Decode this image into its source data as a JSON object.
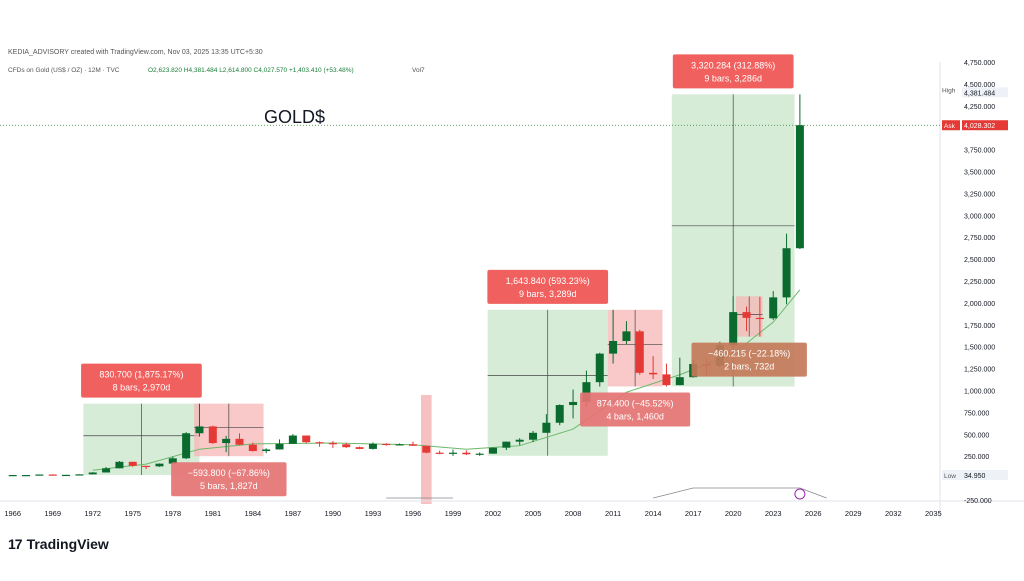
{
  "header": {
    "publisher": "KEDIA_ADVISORY created with TradingView.com, Nov 03, 2025 13:35 UTC+5:30",
    "symbol_line": "CFDs on Gold (US$ / OZ) · 12M · TVC",
    "ohlc": "O2,623.820  H4,381.484  L2,614.800  C4,027.570  +1,403.410 (+53.48%)",
    "vol": "Vol7"
  },
  "title": "GOLD$",
  "footer": {
    "brand": "TradingView",
    "logo_glyph": "17"
  },
  "colors": {
    "up": "#0b6b2e",
    "down": "#e53935",
    "range_up": "#c8e6c9",
    "range_down": "#f7b6b6",
    "label_up": "#ef5350",
    "label_brown": "#c47a5a",
    "label_pink": "#e57373"
  },
  "chart_data": {
    "type": "candlestick",
    "x_ticks": [
      "1966",
      "1969",
      "1972",
      "1975",
      "1978",
      "1981",
      "1984",
      "1987",
      "1990",
      "1993",
      "1996",
      "1999",
      "2002",
      "2005",
      "2008",
      "2011",
      "2014",
      "2017",
      "2020",
      "2023",
      "2026",
      "2029",
      "2032",
      "2035"
    ],
    "y_ticks": [
      "4,750.000",
      "4,500.000",
      "4,250.000",
      "3,750.000",
      "3,500.000",
      "3,250.000",
      "3,000.000",
      "2,750.000",
      "2,500.000",
      "2,250.000",
      "2,000.000",
      "1,750.000",
      "1,500.000",
      "1,250.000",
      "1,000.000",
      "750.000",
      "500.000",
      "250.000",
      "-250.000"
    ],
    "ylim": [
      -250,
      4750
    ],
    "xlim": [
      1965.5,
      2035.5
    ],
    "high_label": "High",
    "high_value": "4,381.484",
    "ask_label": "Ask",
    "ask_value": "4,028.302",
    "low_label": "Low",
    "low_value": "34.950",
    "candles": [
      {
        "year": 1966,
        "o": 35,
        "h": 35.5,
        "l": 34.9,
        "c": 35
      },
      {
        "year": 1967,
        "o": 35,
        "h": 35.5,
        "l": 34.9,
        "c": 35
      },
      {
        "year": 1968,
        "o": 35,
        "h": 42,
        "l": 34.9,
        "c": 41
      },
      {
        "year": 1969,
        "o": 41,
        "h": 44,
        "l": 35,
        "c": 35
      },
      {
        "year": 1970,
        "o": 35,
        "h": 39,
        "l": 34.9,
        "c": 37
      },
      {
        "year": 1971,
        "o": 37,
        "h": 44,
        "l": 37,
        "c": 43
      },
      {
        "year": 1972,
        "o": 43,
        "h": 68,
        "l": 43,
        "c": 64
      },
      {
        "year": 1973,
        "o": 64,
        "h": 127,
        "l": 64,
        "c": 112
      },
      {
        "year": 1974,
        "o": 112,
        "h": 195,
        "l": 112,
        "c": 186
      },
      {
        "year": 1975,
        "o": 186,
        "h": 186,
        "l": 128,
        "c": 140
      },
      {
        "year": 1976,
        "o": 140,
        "h": 141,
        "l": 103,
        "c": 134
      },
      {
        "year": 1977,
        "o": 134,
        "h": 168,
        "l": 128,
        "c": 165
      },
      {
        "year": 1978,
        "o": 165,
        "h": 244,
        "l": 165,
        "c": 226
      },
      {
        "year": 1979,
        "o": 226,
        "h": 524,
        "l": 216,
        "c": 512
      },
      {
        "year": 1980,
        "o": 512,
        "h": 850,
        "l": 474,
        "c": 590
      },
      {
        "year": 1981,
        "o": 590,
        "h": 599,
        "l": 391,
        "c": 400
      },
      {
        "year": 1982,
        "o": 400,
        "h": 482,
        "l": 296,
        "c": 448
      },
      {
        "year": 1983,
        "o": 448,
        "h": 510,
        "l": 374,
        "c": 381
      },
      {
        "year": 1984,
        "o": 381,
        "h": 405,
        "l": 303,
        "c": 309
      },
      {
        "year": 1985,
        "o": 309,
        "h": 340,
        "l": 285,
        "c": 327
      },
      {
        "year": 1986,
        "o": 327,
        "h": 442,
        "l": 326,
        "c": 391
      },
      {
        "year": 1987,
        "o": 391,
        "h": 502,
        "l": 390,
        "c": 486
      },
      {
        "year": 1988,
        "o": 486,
        "h": 486,
        "l": 395,
        "c": 410
      },
      {
        "year": 1989,
        "o": 410,
        "h": 418,
        "l": 358,
        "c": 401
      },
      {
        "year": 1990,
        "o": 401,
        "h": 424,
        "l": 345,
        "c": 386
      },
      {
        "year": 1991,
        "o": 386,
        "h": 403,
        "l": 344,
        "c": 353
      },
      {
        "year": 1992,
        "o": 353,
        "h": 360,
        "l": 330,
        "c": 333
      },
      {
        "year": 1993,
        "o": 333,
        "h": 407,
        "l": 326,
        "c": 391
      },
      {
        "year": 1994,
        "o": 391,
        "h": 398,
        "l": 370,
        "c": 383
      },
      {
        "year": 1995,
        "o": 383,
        "h": 396,
        "l": 372,
        "c": 386
      },
      {
        "year": 1996,
        "o": 386,
        "h": 417,
        "l": 367,
        "c": 369
      },
      {
        "year": 1997,
        "o": 369,
        "h": 369,
        "l": 283,
        "c": 290
      },
      {
        "year": 1998,
        "o": 290,
        "h": 313,
        "l": 273,
        "c": 288
      },
      {
        "year": 1999,
        "o": 288,
        "h": 326,
        "l": 253,
        "c": 290
      },
      {
        "year": 2000,
        "o": 290,
        "h": 316,
        "l": 263,
        "c": 272
      },
      {
        "year": 2001,
        "o": 272,
        "h": 293,
        "l": 255,
        "c": 279
      },
      {
        "year": 2002,
        "o": 279,
        "h": 349,
        "l": 277,
        "c": 347
      },
      {
        "year": 2003,
        "o": 347,
        "h": 417,
        "l": 320,
        "c": 416
      },
      {
        "year": 2004,
        "o": 416,
        "h": 456,
        "l": 375,
        "c": 438
      },
      {
        "year": 2005,
        "o": 438,
        "h": 538,
        "l": 411,
        "c": 517
      },
      {
        "year": 2006,
        "o": 517,
        "h": 730,
        "l": 520,
        "c": 632
      },
      {
        "year": 2007,
        "o": 632,
        "h": 842,
        "l": 603,
        "c": 834
      },
      {
        "year": 2008,
        "o": 834,
        "h": 1011,
        "l": 681,
        "c": 869
      },
      {
        "year": 2009,
        "o": 869,
        "h": 1227,
        "l": 810,
        "c": 1095
      },
      {
        "year": 2010,
        "o": 1095,
        "h": 1431,
        "l": 1045,
        "c": 1421
      },
      {
        "year": 2011,
        "o": 1421,
        "h": 1921,
        "l": 1308,
        "c": 1565
      },
      {
        "year": 2012,
        "o": 1565,
        "h": 1792,
        "l": 1526,
        "c": 1675
      },
      {
        "year": 2013,
        "o": 1675,
        "h": 1694,
        "l": 1180,
        "c": 1202
      },
      {
        "year": 2014,
        "o": 1202,
        "h": 1392,
        "l": 1131,
        "c": 1184
      },
      {
        "year": 2015,
        "o": 1184,
        "h": 1307,
        "l": 1046,
        "c": 1061
      },
      {
        "year": 2016,
        "o": 1061,
        "h": 1375,
        "l": 1061,
        "c": 1152
      },
      {
        "year": 2017,
        "o": 1152,
        "h": 1357,
        "l": 1146,
        "c": 1303
      },
      {
        "year": 2018,
        "o": 1303,
        "h": 1366,
        "l": 1160,
        "c": 1282
      },
      {
        "year": 2019,
        "o": 1282,
        "h": 1557,
        "l": 1266,
        "c": 1517
      },
      {
        "year": 2020,
        "o": 1517,
        "h": 2075,
        "l": 1451,
        "c": 1895
      },
      {
        "year": 2021,
        "o": 1895,
        "h": 1959,
        "l": 1677,
        "c": 1829
      },
      {
        "year": 2022,
        "o": 1829,
        "h": 2070,
        "l": 1615,
        "c": 1824
      },
      {
        "year": 2023,
        "o": 1824,
        "h": 2135,
        "l": 1804,
        "c": 2063
      },
      {
        "year": 2024,
        "o": 2063,
        "h": 2790,
        "l": 1984,
        "c": 2624
      },
      {
        "year": 2025,
        "o": 2624,
        "h": 4381,
        "l": 2615,
        "c": 4028
      }
    ],
    "ranges": [
      {
        "kind": "up",
        "x0": 1971.3,
        "x1": 1980.0,
        "y0": 35,
        "y1": 850,
        "text1": "830.700 (1,875.17%)",
        "text2": "8 bars, 2,970d",
        "box_at": "top"
      },
      {
        "kind": "down",
        "x0": 1979.6,
        "x1": 1984.8,
        "y0": 250,
        "y1": 850,
        "text1": "−593.800 (−67.86%)",
        "text2": "5 bars, 1,827d",
        "box_at": "bottom"
      },
      {
        "kind": "up",
        "x0": 2001.6,
        "x1": 2010.6,
        "y0": 255,
        "y1": 1921,
        "text1": "1,643.840 (593.23%)",
        "text2": "9 bars, 3,289d",
        "box_at": "top"
      },
      {
        "kind": "down",
        "x0": 2010.6,
        "x1": 2014.7,
        "y0": 1046,
        "y1": 1921,
        "text1": "874.400 (−45.52%)",
        "text2": "4 bars, 1,460d",
        "box_at": "bottom"
      },
      {
        "kind": "up",
        "x0": 2015.4,
        "x1": 2024.6,
        "y0": 1046,
        "y1": 4381,
        "text1": "3,320.284 (312.88%)",
        "text2": "9 bars, 3,286d",
        "box_at": "top"
      },
      {
        "kind": "down",
        "x0": 2020.2,
        "x1": 2022.2,
        "y0": 1615,
        "y1": 2075,
        "text1": "−460.215 (−22.18%)",
        "text2": "2 bars, 732d",
        "box_at": "bottom"
      }
    ],
    "pink_column": {
      "x0": 1996.6,
      "x1": 1997.4
    },
    "ma_points": [
      {
        "year": 1972,
        "v": 90
      },
      {
        "year": 1976,
        "v": 160
      },
      {
        "year": 1980,
        "v": 330
      },
      {
        "year": 1984,
        "v": 390
      },
      {
        "year": 1990,
        "v": 400
      },
      {
        "year": 1996,
        "v": 380
      },
      {
        "year": 2000,
        "v": 330
      },
      {
        "year": 2004,
        "v": 370
      },
      {
        "year": 2008,
        "v": 560
      },
      {
        "year": 2012,
        "v": 980
      },
      {
        "year": 2016,
        "v": 1180
      },
      {
        "year": 2020,
        "v": 1420
      },
      {
        "year": 2023,
        "v": 1780
      },
      {
        "year": 2025,
        "v": 2150
      }
    ]
  }
}
